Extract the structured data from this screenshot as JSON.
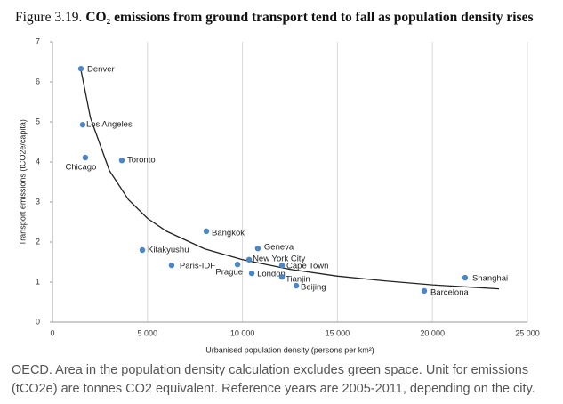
{
  "chart_data": {
    "type": "scatter",
    "figure_label": "Figure 3.19.",
    "title": "CO₂ emissions from ground transport tend to fall as population density rises",
    "x_label": "Urbanised population density (persons per km²)",
    "y_label": "Transport emissions (tCO2e/capita)",
    "xlim": [
      0,
      25000
    ],
    "ylim": [
      0,
      7
    ],
    "xticks": [
      0,
      {
        "value": 5000,
        "label": "5 000"
      },
      {
        "value": 10000,
        "label": "10 000"
      },
      {
        "value": 15000,
        "label": "15 000"
      },
      {
        "value": 20000,
        "label": "20 000"
      },
      {
        "value": 25000,
        "label": "25 000"
      }
    ],
    "yticks": [
      0,
      1,
      2,
      3,
      4,
      5,
      6,
      7
    ],
    "grid": true,
    "color": "#4a86c8",
    "points": {
      "labels": [
        "Denver",
        "Los Angeles",
        "Chicago",
        "Toronto",
        "Bangkok",
        "Kitakyushu",
        "Geneva",
        "New York City",
        "Paris-IDF",
        "Prague",
        "Cape Town",
        "London",
        "Tianjin",
        "Beijing",
        "Barcelona",
        "Shanghai"
      ],
      "x": [
        1500,
        1590,
        1730,
        3650,
        8100,
        4730,
        10810,
        10350,
        6270,
        9740,
        12080,
        10490,
        12080,
        12830,
        19570,
        21720
      ],
      "y": [
        6.33,
        4.93,
        4.11,
        4.04,
        2.27,
        1.8,
        1.84,
        1.56,
        1.42,
        1.44,
        1.42,
        1.22,
        1.13,
        0.91,
        0.78,
        1.11
      ]
    },
    "trend_line": {
      "color": "#222222",
      "x": [
        1500,
        2000,
        3000,
        4000,
        5000,
        6000,
        8000,
        10000,
        12500,
        15000,
        17500,
        20000,
        23500
      ],
      "y": [
        6.3,
        5.1,
        3.78,
        3.06,
        2.59,
        2.27,
        1.83,
        1.56,
        1.32,
        1.15,
        1.03,
        0.93,
        0.83
      ]
    }
  },
  "caption": "OECD. Area in the population density calculation excludes green space. Unit for emissions (tCO2e) are tonnes CO2 equivalent. Reference years are 2005-2011, depending on the city."
}
